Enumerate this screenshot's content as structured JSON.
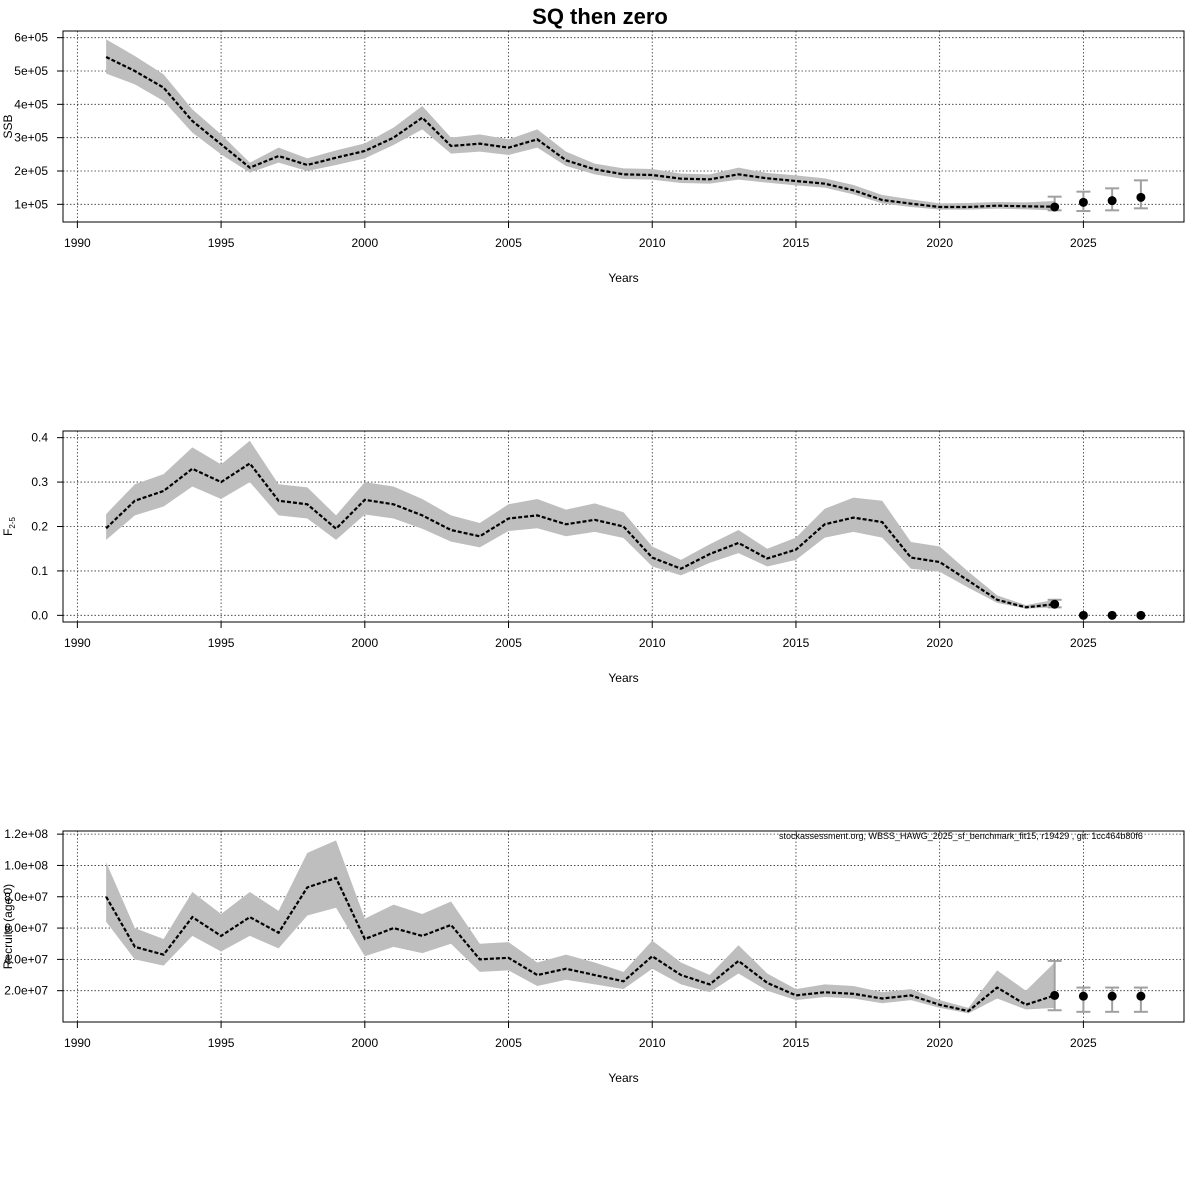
{
  "figure": {
    "title": "SQ then zero",
    "footnote": "stockassessment.org, WBSS_HAWG_2025_sf_benchmark_fit15, r19429 , git: 1cc464b80f6"
  },
  "chart_data": [
    {
      "type": "line",
      "title": "SQ then zero",
      "xlabel": "Years",
      "ylabel": "SSB",
      "xlim": [
        1989.5,
        2028.5
      ],
      "ylim": [
        47000,
        620000
      ],
      "xticks": [
        1990,
        1995,
        2000,
        2005,
        2010,
        2015,
        2020,
        2025
      ],
      "yticks": [
        100000,
        200000,
        300000,
        400000,
        500000,
        600000
      ],
      "ytick_labels": [
        "1e+05",
        "2e+05",
        "3e+05",
        "4e+05",
        "5e+05",
        "6e+05"
      ],
      "grid": true,
      "x": [
        1991,
        1992,
        1993,
        1994,
        1995,
        1996,
        1997,
        1998,
        1999,
        2000,
        2001,
        2002,
        2003,
        2004,
        2005,
        2006,
        2007,
        2008,
        2009,
        2010,
        2011,
        2012,
        2013,
        2014,
        2015,
        2016,
        2017,
        2018,
        2019,
        2020,
        2021,
        2022,
        2023,
        2024
      ],
      "series": [
        {
          "estimate": [
            542000,
            500000,
            450000,
            350000,
            280000,
            210000,
            245000,
            218000,
            240000,
            260000,
            300000,
            360000,
            275000,
            282000,
            270000,
            295000,
            232000,
            205000,
            190000,
            188000,
            177000,
            175000,
            190000,
            178000,
            170000,
            162000,
            142000,
            113000,
            102000,
            92000,
            92000,
            96000,
            94000,
            93000
          ],
          "lower": [
            492000,
            460000,
            410000,
            315000,
            250000,
            195000,
            225000,
            200000,
            218000,
            238000,
            278000,
            325000,
            252000,
            258000,
            248000,
            270000,
            215000,
            190000,
            176000,
            174000,
            164000,
            162000,
            174000,
            165000,
            157000,
            150000,
            130000,
            103000,
            92000,
            84000,
            84000,
            87000,
            85000,
            82000
          ],
          "upper": [
            595000,
            545000,
            490000,
            385000,
            310000,
            225000,
            270000,
            238000,
            262000,
            283000,
            330000,
            395000,
            300000,
            310000,
            295000,
            325000,
            258000,
            222000,
            208000,
            206000,
            192000,
            190000,
            210000,
            194000,
            187000,
            178000,
            158000,
            128000,
            115000,
            103000,
            104000,
            107000,
            106000,
            110000
          ]
        }
      ],
      "forecast": {
        "x": [
          2024,
          2025,
          2026,
          2027
        ],
        "values": [
          92000,
          106000,
          111000,
          121000
        ],
        "lower": [
          82000,
          80000,
          82000,
          88000
        ],
        "upper": [
          123000,
          138000,
          148000,
          172000
        ]
      }
    },
    {
      "type": "line",
      "xlabel": "Years",
      "ylabel": "F",
      "ylabel_sub": "2-5",
      "xlim": [
        1989.5,
        2028.5
      ],
      "ylim": [
        -0.015,
        0.415
      ],
      "xticks": [
        1990,
        1995,
        2000,
        2005,
        2010,
        2015,
        2020,
        2025
      ],
      "yticks": [
        0,
        0.1,
        0.2,
        0.3,
        0.4
      ],
      "ytick_labels": [
        "0.0",
        "0.1",
        "0.2",
        "0.3",
        "0.4"
      ],
      "grid": true,
      "x": [
        1991,
        1992,
        1993,
        1994,
        1995,
        1996,
        1997,
        1998,
        1999,
        2000,
        2001,
        2002,
        2003,
        2004,
        2005,
        2006,
        2007,
        2008,
        2009,
        2010,
        2011,
        2012,
        2013,
        2014,
        2015,
        2016,
        2017,
        2018,
        2019,
        2020,
        2021,
        2022,
        2023,
        2024
      ],
      "series": [
        {
          "estimate": [
            0.196,
            0.258,
            0.28,
            0.33,
            0.3,
            0.342,
            0.258,
            0.25,
            0.195,
            0.26,
            0.25,
            0.225,
            0.192,
            0.178,
            0.218,
            0.225,
            0.205,
            0.215,
            0.2,
            0.13,
            0.105,
            0.138,
            0.163,
            0.128,
            0.148,
            0.205,
            0.22,
            0.21,
            0.13,
            0.12,
            0.078,
            0.035,
            0.018,
            0.025
          ],
          "lower": [
            0.17,
            0.225,
            0.245,
            0.29,
            0.262,
            0.3,
            0.225,
            0.218,
            0.17,
            0.227,
            0.218,
            0.195,
            0.166,
            0.153,
            0.19,
            0.196,
            0.178,
            0.188,
            0.174,
            0.11,
            0.09,
            0.118,
            0.14,
            0.11,
            0.125,
            0.175,
            0.188,
            0.175,
            0.105,
            0.098,
            0.062,
            0.028,
            0.015,
            0.018
          ],
          "upper": [
            0.228,
            0.295,
            0.318,
            0.378,
            0.34,
            0.393,
            0.295,
            0.288,
            0.225,
            0.3,
            0.29,
            0.262,
            0.225,
            0.208,
            0.25,
            0.262,
            0.238,
            0.252,
            0.232,
            0.155,
            0.125,
            0.16,
            0.192,
            0.15,
            0.175,
            0.24,
            0.265,
            0.258,
            0.165,
            0.155,
            0.098,
            0.045,
            0.023,
            0.035
          ]
        }
      ],
      "forecast": {
        "x": [
          2024,
          2025,
          2026,
          2027
        ],
        "values": [
          0.025,
          0.0,
          0.0,
          0.0
        ],
        "lower": [
          0.018,
          0.0,
          0.0,
          0.0
        ],
        "upper": [
          0.035,
          0.0,
          0.0,
          0.0
        ]
      }
    },
    {
      "type": "line",
      "xlabel": "Years",
      "ylabel": "Recruits (age 0)",
      "xlim": [
        1989.5,
        2028.5
      ],
      "ylim": [
        0,
        122000000
      ],
      "xticks": [
        1990,
        1995,
        2000,
        2005,
        2010,
        2015,
        2020,
        2025
      ],
      "yticks": [
        20000000,
        40000000,
        60000000,
        80000000,
        100000000,
        120000000
      ],
      "ytick_labels": [
        "2.0e+07",
        "4.0e+07",
        "6.0e+07",
        "8.0e+07",
        "1.0e+08",
        "1.2e+08"
      ],
      "grid": true,
      "x": [
        1991,
        1992,
        1993,
        1994,
        1995,
        1996,
        1997,
        1998,
        1999,
        2000,
        2001,
        2002,
        2003,
        2004,
        2005,
        2006,
        2007,
        2008,
        2009,
        2010,
        2011,
        2012,
        2013,
        2014,
        2015,
        2016,
        2017,
        2018,
        2019,
        2020,
        2021,
        2022,
        2023,
        2024
      ],
      "series": [
        {
          "estimate": [
            80000000,
            48000000,
            43000000,
            67000000,
            55000000,
            67000000,
            57000000,
            86000000,
            92000000,
            53000000,
            60000000,
            55000000,
            62000000,
            40000000,
            41000000,
            30000000,
            34000000,
            30000000,
            26000000,
            42000000,
            30000000,
            24000000,
            39000000,
            25000000,
            17000000,
            19000000,
            18000000,
            15000000,
            17000000,
            11000000,
            7000000,
            22000000,
            11000000,
            17000000
          ],
          "lower": [
            64000000,
            40000000,
            36000000,
            55000000,
            45000000,
            55000000,
            47000000,
            68000000,
            73000000,
            42000000,
            48000000,
            44000000,
            50000000,
            32000000,
            33000000,
            23000000,
            27000000,
            24000000,
            21000000,
            34000000,
            24000000,
            19000000,
            31000000,
            20000000,
            14000000,
            16000000,
            15000000,
            12000000,
            14000000,
            9000000,
            5500000,
            15000000,
            8000000,
            9000000
          ],
          "upper": [
            102000000,
            60000000,
            53000000,
            83000000,
            69000000,
            83000000,
            71000000,
            108000000,
            116000000,
            66000000,
            75000000,
            69000000,
            77000000,
            50000000,
            51000000,
            38000000,
            43000000,
            38000000,
            32000000,
            52000000,
            38000000,
            30000000,
            49000000,
            31000000,
            21000000,
            24000000,
            23000000,
            19000000,
            21000000,
            14000000,
            9000000,
            33000000,
            20000000,
            38000000
          ]
        }
      ],
      "forecast": {
        "x": [
          2024,
          2025,
          2026,
          2027
        ],
        "values": [
          17000000,
          16500000,
          16500000,
          16500000
        ],
        "lower": [
          7500000,
          6500000,
          6500000,
          6500000
        ],
        "upper": [
          39000000,
          22000000,
          22000000,
          22000000
        ]
      }
    }
  ]
}
